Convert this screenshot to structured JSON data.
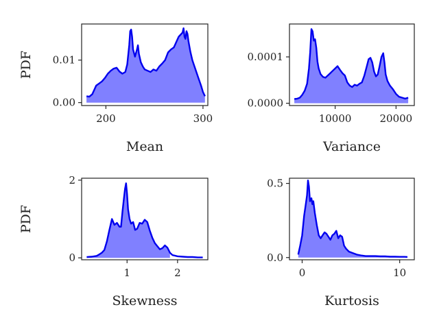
{
  "chart_data": [
    {
      "type": "area",
      "xlabel": "Mean",
      "ylabel": "PDF",
      "xlim": [
        175,
        305
      ],
      "ylim": [
        -0.0007,
        0.0185
      ],
      "xticks": [
        200,
        300
      ],
      "xtick_labels": [
        "200",
        "300"
      ],
      "yticks": [
        0.0,
        0.01
      ],
      "ytick_labels": [
        "0.00",
        "0.01"
      ],
      "grid": false,
      "colors": {
        "line": "#0000ee",
        "fill": "#8080ff"
      },
      "series": [
        {
          "x": [
            180,
            183,
            186,
            188,
            190,
            193,
            196,
            199,
            202,
            205,
            208,
            211,
            214,
            217,
            220,
            222,
            224,
            225,
            226,
            227,
            228,
            230,
            232,
            233,
            234,
            236,
            238,
            240,
            243,
            246,
            249,
            252,
            255,
            258,
            261,
            264,
            267,
            270,
            273,
            275,
            277,
            279,
            280,
            281,
            282,
            283,
            284,
            285,
            287,
            289,
            292,
            295,
            298,
            300,
            302
          ],
          "values": [
            0.0015,
            0.0014,
            0.002,
            0.003,
            0.004,
            0.0045,
            0.005,
            0.0058,
            0.0068,
            0.0075,
            0.008,
            0.0082,
            0.0073,
            0.0068,
            0.0072,
            0.009,
            0.0135,
            0.0168,
            0.0172,
            0.0155,
            0.0125,
            0.0108,
            0.0125,
            0.0135,
            0.0115,
            0.0095,
            0.0085,
            0.0078,
            0.0075,
            0.0072,
            0.0078,
            0.0075,
            0.0085,
            0.0092,
            0.01,
            0.0118,
            0.0125,
            0.013,
            0.0145,
            0.0155,
            0.016,
            0.0165,
            0.0175,
            0.0155,
            0.015,
            0.0168,
            0.0162,
            0.0145,
            0.012,
            0.01,
            0.008,
            0.006,
            0.004,
            0.0025,
            0.0015
          ]
        }
      ]
    },
    {
      "type": "area",
      "xlabel": "Variance",
      "ylabel": "",
      "xlim": [
        2500,
        23000
      ],
      "ylim": [
        -5e-06,
        0.000171
      ],
      "xticks": [
        10000,
        20000
      ],
      "xtick_labels": [
        "10000",
        "20000"
      ],
      "yticks": [
        0.0,
        0.0001
      ],
      "ytick_labels": [
        "0.0000",
        "0.0001"
      ],
      "grid": false,
      "colors": {
        "line": "#0000ee",
        "fill": "#8080ff"
      },
      "series": [
        {
          "x": [
            3300,
            3800,
            4200,
            4600,
            5000,
            5400,
            5700,
            5900,
            6100,
            6300,
            6500,
            6700,
            6900,
            7100,
            7300,
            7600,
            8000,
            8400,
            8800,
            9200,
            9600,
            10000,
            10400,
            10800,
            11200,
            11600,
            12000,
            12400,
            12800,
            13200,
            13600,
            14000,
            14400,
            14800,
            15200,
            15500,
            15800,
            16100,
            16400,
            16700,
            17000,
            17300,
            17600,
            17900,
            18100,
            18300,
            18600,
            19000,
            19500,
            20000,
            20500,
            21000,
            21500,
            22000
          ],
          "values": [
            9e-06,
            1e-05,
            1.2e-05,
            1.8e-05,
            2.7e-05,
            4.2e-05,
            7.5e-05,
            0.00011,
            0.00016,
            0.000155,
            0.000135,
            0.000138,
            0.00012,
            9e-05,
            7.5e-05,
            6.3e-05,
            5.7e-05,
            5.5e-05,
            6e-05,
            6.5e-05,
            7e-05,
            7.5e-05,
            8e-05,
            7.2e-05,
            6.5e-05,
            6e-05,
            4.5e-05,
            3.8e-05,
            3.5e-05,
            4e-05,
            3.8e-05,
            4.2e-05,
            4.5e-05,
            6e-05,
            8e-05,
            9.5e-05,
            9.8e-05,
            8.8e-05,
            6.8e-05,
            5.8e-05,
            6.2e-05,
            8e-05,
            0.0001,
            0.000108,
            8.8e-05,
            6.2e-05,
            4.8e-05,
            3.8e-05,
            3e-05,
            2e-05,
            1.4e-05,
            1.2e-05,
            1e-05,
            1.2e-05
          ]
        }
      ]
    },
    {
      "type": "area",
      "xlabel": "Skewness",
      "ylabel": "PDF",
      "xlim": [
        0.1,
        2.6
      ],
      "ylim": [
        -0.05,
        2.05
      ],
      "xticks": [
        1,
        2
      ],
      "xtick_labels": [
        "1",
        "2"
      ],
      "yticks": [
        0,
        2
      ],
      "ytick_labels": [
        "0",
        "2"
      ],
      "grid": false,
      "colors": {
        "line": "#0000ee",
        "fill": "#8080ff"
      },
      "series": [
        {
          "x": [
            0.2,
            0.3,
            0.4,
            0.45,
            0.5,
            0.55,
            0.6,
            0.65,
            0.7,
            0.75,
            0.8,
            0.85,
            0.88,
            0.91,
            0.94,
            0.96,
            0.98,
            1.0,
            1.02,
            1.05,
            1.08,
            1.12,
            1.16,
            1.2,
            1.25,
            1.3,
            1.35,
            1.4,
            1.45,
            1.5,
            1.55,
            1.6,
            1.65,
            1.7,
            1.75,
            1.8,
            1.85,
            1.9,
            2.0,
            2.1,
            2.2,
            2.3,
            2.4,
            2.5
          ],
          "values": [
            0.02,
            0.03,
            0.05,
            0.09,
            0.13,
            0.2,
            0.42,
            0.72,
            1.0,
            0.85,
            0.9,
            0.8,
            0.8,
            1.2,
            1.55,
            1.78,
            1.92,
            1.65,
            1.25,
            1.0,
            0.88,
            0.92,
            0.72,
            0.75,
            0.9,
            0.88,
            0.98,
            0.92,
            0.7,
            0.52,
            0.38,
            0.3,
            0.22,
            0.25,
            0.32,
            0.26,
            0.13,
            0.07,
            0.04,
            0.03,
            0.02,
            0.02,
            0.01,
            0.01
          ],
          "fill_to": 1.88
        }
      ]
    },
    {
      "type": "area",
      "xlabel": "Kurtosis",
      "ylabel": "",
      "xlim": [
        -1.3,
        11.5
      ],
      "ylim": [
        -0.015,
        0.535
      ],
      "xticks": [
        0,
        10
      ],
      "xtick_labels": [
        "0",
        "10"
      ],
      "yticks": [
        0.0,
        0.5
      ],
      "ytick_labels": [
        "0.0",
        "0.5"
      ],
      "grid": false,
      "colors": {
        "line": "#0000ee",
        "fill": "#8080ff"
      },
      "series": [
        {
          "x": [
            -0.4,
            -0.2,
            0.0,
            0.2,
            0.35,
            0.5,
            0.6,
            0.7,
            0.8,
            0.95,
            1.05,
            1.15,
            1.3,
            1.5,
            1.7,
            1.9,
            2.1,
            2.3,
            2.5,
            2.7,
            2.9,
            3.1,
            3.3,
            3.5,
            3.7,
            3.9,
            4.1,
            4.3,
            4.5,
            4.8,
            5.2,
            5.6,
            6.0,
            6.5,
            7.0,
            7.5,
            8.0,
            8.5,
            9.0,
            9.5,
            10.0,
            10.5,
            10.8
          ],
          "values": [
            0.02,
            0.08,
            0.15,
            0.28,
            0.35,
            0.42,
            0.52,
            0.48,
            0.38,
            0.4,
            0.36,
            0.38,
            0.3,
            0.22,
            0.15,
            0.13,
            0.15,
            0.17,
            0.16,
            0.14,
            0.12,
            0.15,
            0.16,
            0.18,
            0.13,
            0.15,
            0.14,
            0.08,
            0.06,
            0.04,
            0.03,
            0.02,
            0.015,
            0.01,
            0.01,
            0.01,
            0.008,
            0.008,
            0.006,
            0.006,
            0.005,
            0.005,
            0.004
          ]
        }
      ]
    }
  ]
}
